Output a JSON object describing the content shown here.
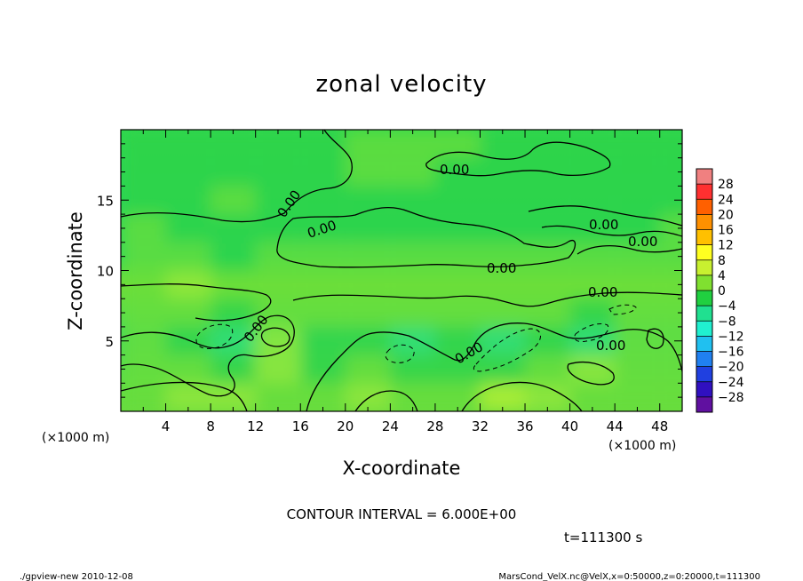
{
  "chart_data": {
    "type": "heatmap",
    "title": "zonal velocity",
    "xlabel": "X-coordinate",
    "ylabel": "Z-coordinate",
    "x_unit": "(×1000 m)",
    "y_unit": "(×1000 m)",
    "xlim": [
      0,
      50
    ],
    "ylim": [
      0,
      20
    ],
    "x_ticks": [
      "4",
      "8",
      "12",
      "16",
      "20",
      "24",
      "28",
      "32",
      "36",
      "40",
      "44",
      "48"
    ],
    "y_ticks": [
      "5",
      "10",
      "15"
    ],
    "contour_interval": "CONTOUR INTERVAL = 6.000E+00",
    "contour_labels": [
      "0.00",
      "0.00",
      "0.00",
      "0.00",
      "0.00",
      "0.00",
      "0.00",
      "0.00",
      "0.00",
      "0.00"
    ],
    "time_label": "t=111300 s",
    "colorbar": {
      "levels": [
        "28",
        "24",
        "20",
        "16",
        "12",
        "8",
        "4",
        "0",
        "−4",
        "−8",
        "−12",
        "−16",
        "−20",
        "−24",
        "−28"
      ],
      "colors": [
        "#f08080",
        "#ff3030",
        "#ff6000",
        "#ff9000",
        "#ffc000",
        "#ffff20",
        "#c8f030",
        "#80e030",
        "#20d040",
        "#20e090",
        "#20f0d0",
        "#20c0f0",
        "#2080f0",
        "#2040e0",
        "#3010c0",
        "#6010a0"
      ]
    },
    "field": {
      "x": [
        2,
        6,
        10,
        14,
        18,
        22,
        26,
        30,
        34,
        38,
        42,
        46,
        50
      ],
      "z": [
        1,
        3,
        5,
        7,
        9,
        11,
        13,
        15,
        17,
        19
      ],
      "values": [
        [
          2,
          4,
          6,
          3,
          0,
          4,
          3,
          1,
          8,
          6,
          3,
          2,
          2
        ],
        [
          1,
          2,
          -2,
          4,
          -2,
          2,
          -3,
          -2,
          -4,
          1,
          4,
          1,
          1
        ],
        [
          2,
          -3,
          -6,
          4,
          -2,
          -3,
          -5,
          -3,
          -8,
          -4,
          -7,
          0,
          2
        ],
        [
          1,
          1,
          -2,
          1,
          0,
          1,
          2,
          2,
          0,
          2,
          -3,
          1,
          0
        ],
        [
          3,
          4,
          3,
          2,
          2,
          3,
          3,
          2,
          2,
          3,
          2,
          3,
          3
        ],
        [
          1,
          0,
          -1,
          0,
          1,
          2,
          2,
          2,
          3,
          1,
          1,
          0,
          1
        ],
        [
          0,
          -1,
          -1,
          -2,
          -2,
          -1,
          -1,
          -1,
          -1,
          -1,
          -2,
          -1,
          0
        ],
        [
          -1,
          -1,
          0,
          -1,
          -1,
          -2,
          -1,
          -1,
          -1,
          -2,
          -1,
          -1,
          -1
        ],
        [
          -1,
          -1,
          -1,
          -1,
          -1,
          0,
          0,
          -1,
          -1,
          -1,
          -2,
          -1,
          -1
        ],
        [
          -1,
          -1,
          -1,
          -1,
          -1,
          0,
          0,
          0,
          -1,
          -1,
          -1,
          -1,
          -1
        ]
      ]
    }
  },
  "footer": {
    "left": "./gpview-new  2010-12-08",
    "right": "MarsCond_VelX.nc@VelX,x=0:50000,z=0:20000,t=111300"
  }
}
